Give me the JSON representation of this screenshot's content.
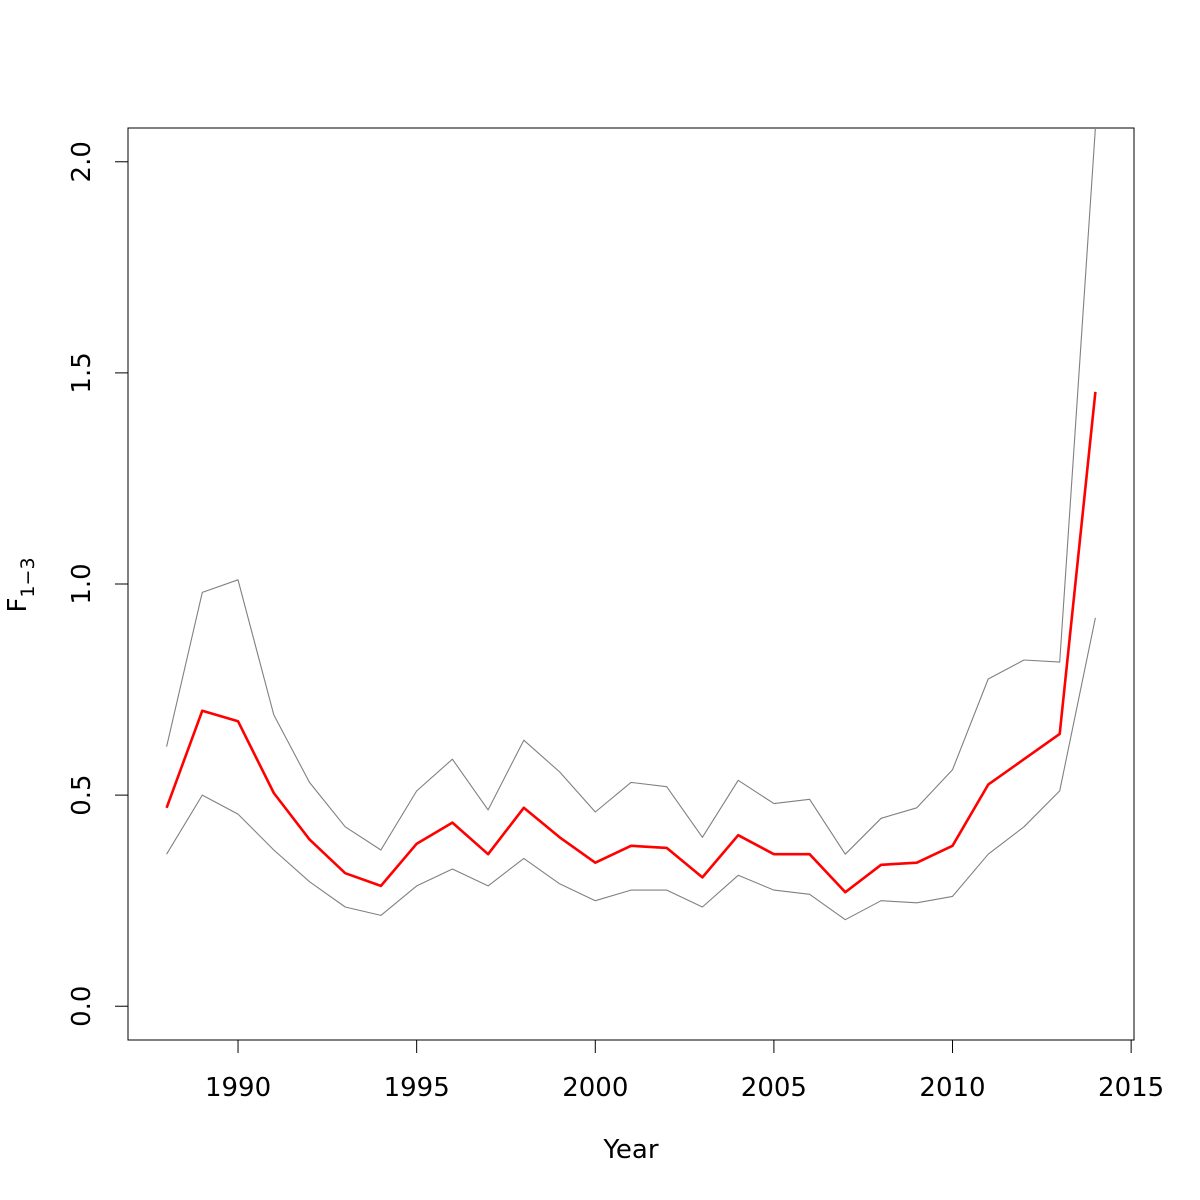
{
  "chart_data": {
    "type": "line",
    "title": "",
    "xlabel": "Year",
    "ylabel": {
      "main": "F",
      "subscript": "1−3"
    },
    "xlim": [
      1986.92,
      2015.08
    ],
    "ylim": [
      -0.08,
      2.08
    ],
    "x_ticks": [
      1990,
      1995,
      2000,
      2005,
      2010,
      2015
    ],
    "x_tick_labels": [
      "1990",
      "1995",
      "2000",
      "2005",
      "2010",
      "2015"
    ],
    "y_ticks": [
      0.0,
      0.5,
      1.0,
      1.5,
      2.0
    ],
    "y_tick_labels": [
      "0.0",
      "0.5",
      "1.0",
      "1.5",
      "2.0"
    ],
    "grid": false,
    "legend": "none",
    "x": [
      1988,
      1989,
      1990,
      1991,
      1992,
      1993,
      1994,
      1995,
      1996,
      1997,
      1998,
      1999,
      2000,
      2001,
      2002,
      2003,
      2004,
      2005,
      2006,
      2007,
      2008,
      2009,
      2010,
      2011,
      2012,
      2013,
      2014
    ],
    "series": [
      {
        "role": "estimate",
        "color": "#ff0000",
        "values": [
          0.47,
          0.7,
          0.675,
          0.505,
          0.395,
          0.315,
          0.285,
          0.385,
          0.435,
          0.36,
          0.47,
          0.4,
          0.34,
          0.38,
          0.375,
          0.305,
          0.405,
          0.36,
          0.36,
          0.27,
          0.335,
          0.34,
          0.38,
          0.525,
          0.585,
          0.645,
          1.455
        ]
      },
      {
        "role": "upper",
        "color": "#808080",
        "values": [
          0.615,
          0.98,
          1.01,
          0.69,
          0.53,
          0.425,
          0.37,
          0.51,
          0.585,
          0.465,
          0.63,
          0.555,
          0.46,
          0.53,
          0.52,
          0.4,
          0.535,
          0.48,
          0.49,
          0.36,
          0.445,
          0.47,
          0.56,
          0.775,
          0.82,
          0.815,
          2.08
        ]
      },
      {
        "role": "lower",
        "color": "#808080",
        "values": [
          0.36,
          0.5,
          0.455,
          0.37,
          0.295,
          0.235,
          0.215,
          0.285,
          0.325,
          0.285,
          0.35,
          0.29,
          0.25,
          0.275,
          0.275,
          0.235,
          0.31,
          0.275,
          0.265,
          0.205,
          0.25,
          0.245,
          0.26,
          0.36,
          0.425,
          0.51,
          0.92
        ]
      }
    ]
  }
}
